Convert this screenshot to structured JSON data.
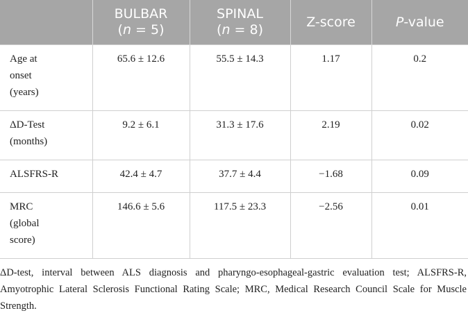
{
  "table": {
    "header": [
      [],
      [
        [
          "BULBAR"
        ],
        [
          "(",
          "n",
          " = 5)"
        ]
      ],
      [
        [
          "SPINAL"
        ],
        [
          "(",
          "n",
          " = 8)"
        ]
      ],
      [
        [
          "Z-score"
        ]
      ],
      [
        [
          "P",
          "-value"
        ]
      ]
    ],
    "rows": [
      {
        "label": [
          "Age at",
          "onset",
          "(years)"
        ],
        "cells": [
          "65.6 ± 12.6",
          "55.5 ± 14.3",
          "1.17",
          "0.2"
        ]
      },
      {
        "label": [
          "ΔD-Test",
          "(months)"
        ],
        "cells": [
          "9.2 ± 6.1",
          "31.3 ± 17.6",
          "2.19",
          "0.02"
        ]
      },
      {
        "label": [
          "ALSFRS-R"
        ],
        "cells": [
          "42.4 ± 4.7",
          "37.7 ± 4.4",
          "−1.68",
          "0.09"
        ]
      },
      {
        "label": [
          "MRC",
          "(global",
          "score)"
        ],
        "cells": [
          "146.6 ± 5.6",
          "117.5 ± 23.3",
          "−2.56",
          "0.01"
        ]
      }
    ]
  },
  "footnote": "ΔD-test, interval between ALS diagnosis and pharyngo-esophageal-gastric evaluation test; ALSFRS-R, Amyotrophic Lateral Sclerosis Functional Rating Scale; MRC, Medical Research Council Scale for Muscle Strength."
}
